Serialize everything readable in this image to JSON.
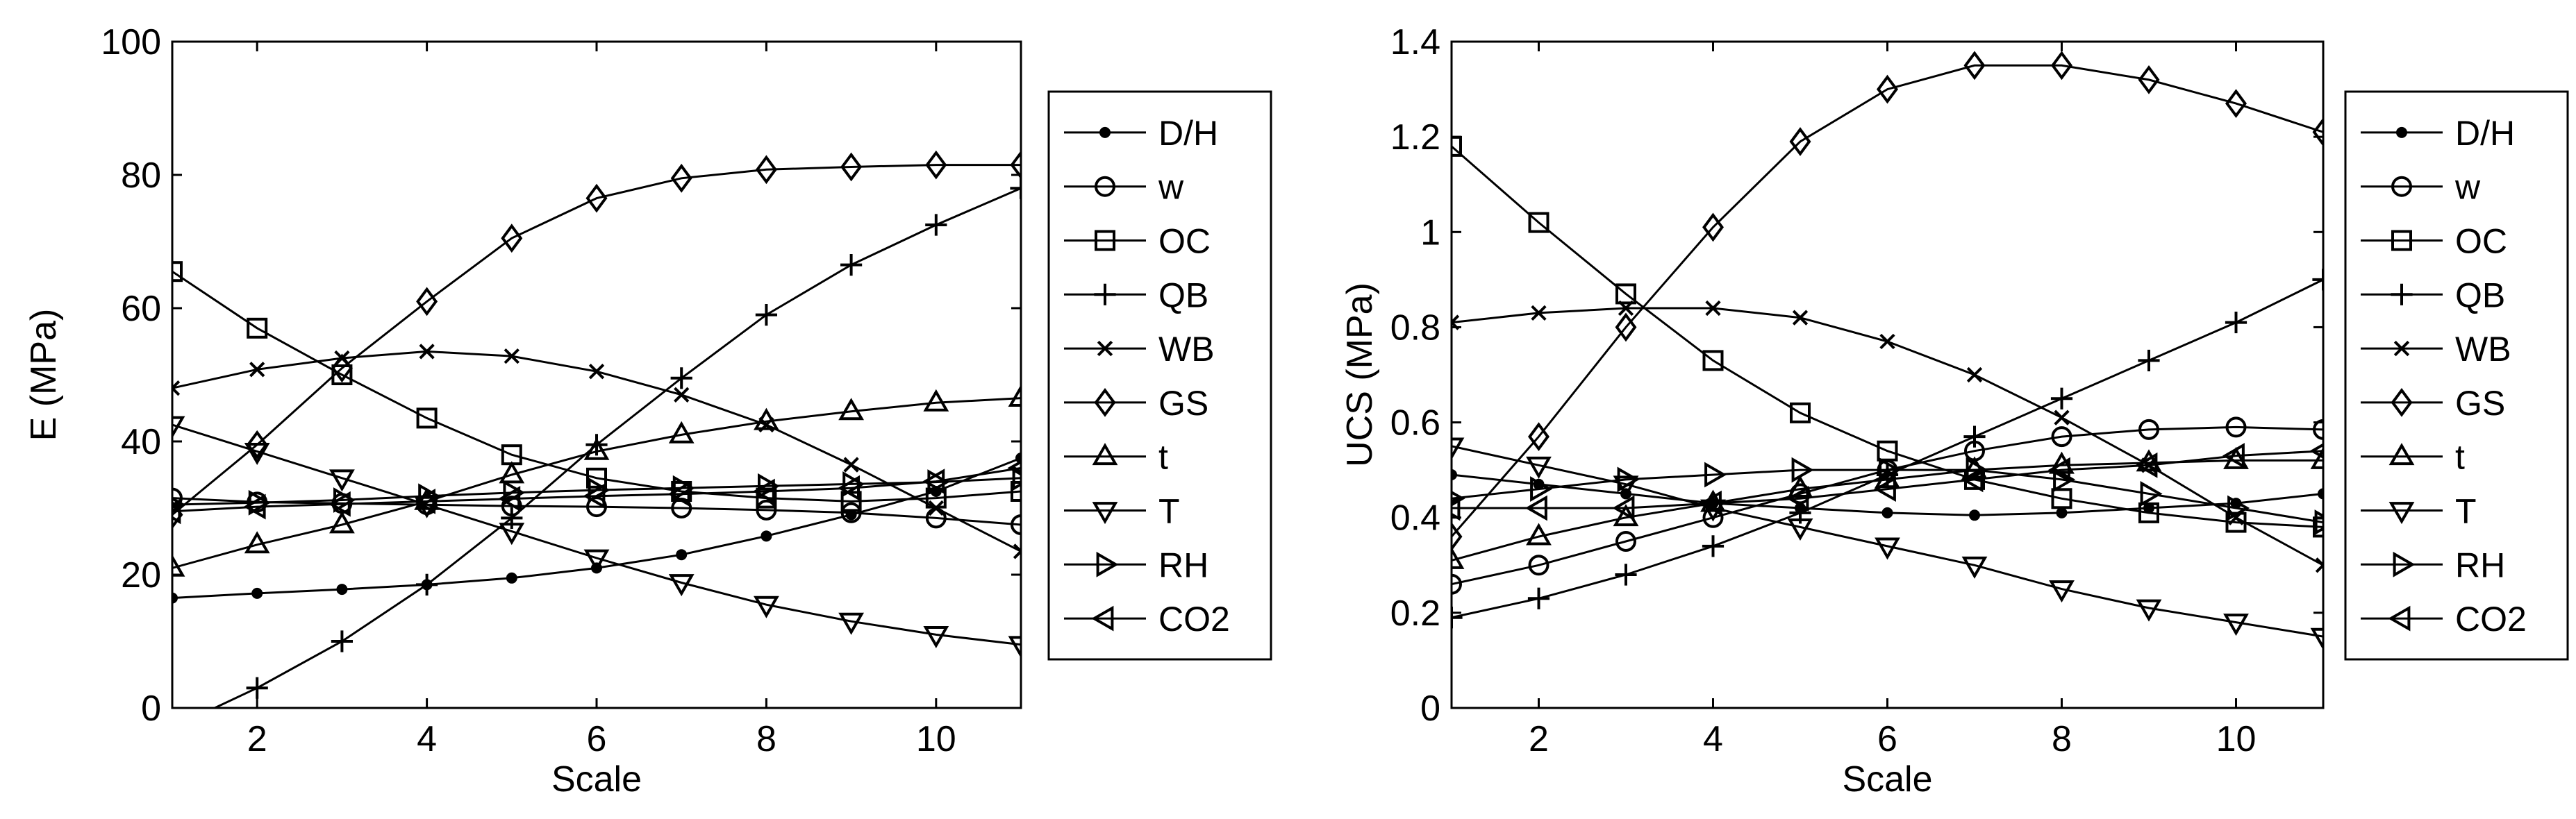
{
  "chart_data": [
    {
      "type": "line",
      "xlabel": "Scale",
      "ylabel": "E (MPa)",
      "xlim": [
        1,
        11
      ],
      "ylim": [
        0,
        100
      ],
      "xticks": [
        2,
        4,
        6,
        8,
        10
      ],
      "yticks": [
        0,
        20,
        40,
        60,
        80,
        100
      ],
      "grid": false,
      "legend_position": "outside-right",
      "x": [
        1,
        2,
        3,
        4,
        5,
        6,
        7,
        8,
        9,
        10,
        11
      ],
      "series": [
        {
          "name": "D/H",
          "marker": "dot",
          "values": [
            16.5,
            17.2,
            17.8,
            18.5,
            19.5,
            21,
            23,
            25.8,
            29,
            32.5,
            37.5
          ]
        },
        {
          "name": "w",
          "marker": "circle",
          "values": [
            31.5,
            30.9,
            30.7,
            30.5,
            30.3,
            30.2,
            30,
            29.7,
            29.3,
            28.5,
            27.5
          ]
        },
        {
          "name": "OC",
          "marker": "square",
          "values": [
            65.5,
            57,
            50,
            43.5,
            38,
            34.5,
            32.5,
            31.5,
            31,
            31.5,
            32.5
          ]
        },
        {
          "name": "QB",
          "marker": "plus",
          "values": [
            -3,
            3,
            10,
            18.5,
            28.5,
            39.5,
            49.5,
            59,
            66.5,
            72.5,
            78
          ]
        },
        {
          "name": "WB",
          "marker": "x",
          "values": [
            48,
            50.8,
            52.5,
            53.5,
            52.8,
            50.5,
            47,
            42.5,
            36.5,
            30,
            23.5
          ]
        },
        {
          "name": "GS",
          "marker": "diamond",
          "values": [
            29,
            39.5,
            51,
            61,
            70.5,
            76.5,
            79.5,
            80.8,
            81.2,
            81.5,
            81.5
          ]
        },
        {
          "name": "t",
          "marker": "triangle-up",
          "values": [
            21,
            24.5,
            27.5,
            31,
            35,
            38.5,
            41,
            43,
            44.5,
            45.8,
            46.5
          ]
        },
        {
          "name": "T",
          "marker": "triangle-down",
          "values": [
            42.5,
            38.5,
            34.5,
            30.5,
            26.5,
            22.5,
            18.8,
            15.5,
            13,
            11,
            9.5
          ]
        },
        {
          "name": "RH",
          "marker": "triangle-right",
          "values": [
            30.5,
            30.8,
            31.2,
            31.8,
            32.3,
            32.7,
            33,
            33.3,
            33.6,
            33.9,
            34.5
          ]
        },
        {
          "name": "CO2",
          "marker": "triangle-left",
          "values": [
            29.5,
            30.2,
            30.6,
            31,
            31.4,
            31.8,
            32.1,
            32.5,
            33,
            34,
            36
          ]
        }
      ]
    },
    {
      "type": "line",
      "xlabel": "Scale",
      "ylabel": "UCS (MPa)",
      "xlim": [
        1,
        11
      ],
      "ylim": [
        0,
        1.4
      ],
      "xticks": [
        2,
        4,
        6,
        8,
        10
      ],
      "yticks": [
        0,
        0.2,
        0.4,
        0.6,
        0.8,
        1,
        1.2,
        1.4
      ],
      "grid": false,
      "legend_position": "outside-right",
      "x": [
        1,
        2,
        3,
        4,
        5,
        6,
        7,
        8,
        9,
        10,
        11
      ],
      "series": [
        {
          "name": "D/H",
          "marker": "dot",
          "values": [
            0.49,
            0.47,
            0.45,
            0.43,
            0.42,
            0.41,
            0.405,
            0.41,
            0.42,
            0.43,
            0.45
          ]
        },
        {
          "name": "w",
          "marker": "circle",
          "values": [
            0.26,
            0.3,
            0.35,
            0.4,
            0.45,
            0.5,
            0.54,
            0.57,
            0.585,
            0.59,
            0.585
          ]
        },
        {
          "name": "OC",
          "marker": "square",
          "values": [
            1.18,
            1.02,
            0.87,
            0.73,
            0.62,
            0.54,
            0.48,
            0.44,
            0.41,
            0.39,
            0.38
          ]
        },
        {
          "name": "QB",
          "marker": "plus",
          "values": [
            0.19,
            0.23,
            0.28,
            0.34,
            0.41,
            0.49,
            0.57,
            0.65,
            0.73,
            0.81,
            0.9
          ]
        },
        {
          "name": "WB",
          "marker": "x",
          "values": [
            0.81,
            0.83,
            0.84,
            0.84,
            0.82,
            0.77,
            0.7,
            0.61,
            0.51,
            0.4,
            0.3
          ]
        },
        {
          "name": "GS",
          "marker": "diamond",
          "values": [
            0.36,
            0.57,
            0.8,
            1.01,
            1.19,
            1.3,
            1.35,
            1.35,
            1.32,
            1.27,
            1.21
          ]
        },
        {
          "name": "t",
          "marker": "triangle-up",
          "values": [
            0.31,
            0.36,
            0.4,
            0.43,
            0.46,
            0.48,
            0.5,
            0.51,
            0.515,
            0.52,
            0.52
          ]
        },
        {
          "name": "T",
          "marker": "triangle-down",
          "values": [
            0.55,
            0.51,
            0.47,
            0.42,
            0.38,
            0.34,
            0.3,
            0.25,
            0.21,
            0.18,
            0.15
          ]
        },
        {
          "name": "RH",
          "marker": "triangle-right",
          "values": [
            0.44,
            0.46,
            0.48,
            0.49,
            0.5,
            0.5,
            0.5,
            0.48,
            0.45,
            0.42,
            0.39
          ]
        },
        {
          "name": "CO2",
          "marker": "triangle-left",
          "values": [
            0.42,
            0.42,
            0.42,
            0.43,
            0.44,
            0.46,
            0.48,
            0.5,
            0.51,
            0.53,
            0.54
          ]
        }
      ]
    }
  ]
}
